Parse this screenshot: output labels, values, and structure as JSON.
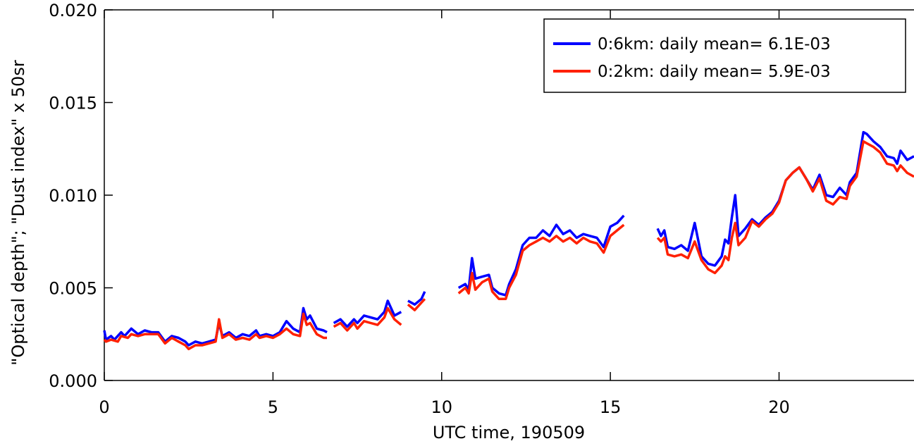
{
  "chart_data": {
    "type": "line",
    "title": "",
    "xlabel": "UTC time, 190509",
    "ylabel": "\"Optical depth\"; \"Dust index\" x 50sr",
    "xlim": [
      0,
      24
    ],
    "ylim": [
      0,
      0.02
    ],
    "x_ticks": [
      {
        "value": 0,
        "label": "0"
      },
      {
        "value": 5,
        "label": "5"
      },
      {
        "value": 10,
        "label": "10"
      },
      {
        "value": 15,
        "label": "15"
      },
      {
        "value": 20,
        "label": "20"
      }
    ],
    "y_ticks": [
      {
        "value": 0,
        "label": "0.000"
      },
      {
        "value": 0.005,
        "label": "0.005"
      },
      {
        "value": 0.01,
        "label": "0.010"
      },
      {
        "value": 0.015,
        "label": "0.015"
      },
      {
        "value": 0.02,
        "label": "0.020"
      }
    ],
    "grid": false,
    "legend_position": "top-right",
    "series": [
      {
        "name": "0:6km: daily mean= 6.1E-03",
        "color": "#0000ff",
        "segments": [
          [
            [
              0,
              0.0027
            ],
            [
              0.05,
              0.0022
            ],
            [
              0.2,
              0.0024
            ],
            [
              0.3,
              0.0022
            ],
            [
              0.5,
              0.0026
            ],
            [
              0.6,
              0.0024
            ],
            [
              0.8,
              0.0028
            ],
            [
              1.0,
              0.0025
            ],
            [
              1.2,
              0.0027
            ],
            [
              1.4,
              0.0026
            ],
            [
              1.6,
              0.0026
            ],
            [
              1.8,
              0.0021
            ],
            [
              2.0,
              0.0024
            ],
            [
              2.2,
              0.0023
            ],
            [
              2.4,
              0.0021
            ],
            [
              2.5,
              0.0019
            ],
            [
              2.7,
              0.0021
            ],
            [
              2.9,
              0.002
            ],
            [
              3.1,
              0.0021
            ],
            [
              3.3,
              0.0022
            ],
            [
              3.4,
              0.0031
            ],
            [
              3.5,
              0.0024
            ],
            [
              3.7,
              0.0026
            ],
            [
              3.9,
              0.0023
            ],
            [
              4.1,
              0.0025
            ],
            [
              4.3,
              0.0024
            ],
            [
              4.5,
              0.0027
            ],
            [
              4.6,
              0.0024
            ],
            [
              4.8,
              0.0025
            ],
            [
              5.0,
              0.0024
            ],
            [
              5.2,
              0.0026
            ],
            [
              5.4,
              0.0032
            ],
            [
              5.6,
              0.0028
            ],
            [
              5.8,
              0.0026
            ],
            [
              5.9,
              0.0039
            ],
            [
              6.0,
              0.0033
            ],
            [
              6.1,
              0.0035
            ],
            [
              6.3,
              0.0028
            ],
            [
              6.5,
              0.0027
            ],
            [
              6.6,
              0.0026
            ]
          ],
          [
            [
              6.8,
              0.0031
            ],
            [
              7.0,
              0.0033
            ],
            [
              7.2,
              0.0029
            ],
            [
              7.4,
              0.0033
            ],
            [
              7.5,
              0.0031
            ],
            [
              7.7,
              0.0035
            ],
            [
              7.9,
              0.0034
            ],
            [
              8.1,
              0.0033
            ],
            [
              8.3,
              0.0037
            ],
            [
              8.4,
              0.0043
            ],
            [
              8.6,
              0.0035
            ],
            [
              8.8,
              0.0037
            ]
          ],
          [
            [
              9.0,
              0.0043
            ],
            [
              9.2,
              0.0041
            ],
            [
              9.4,
              0.0044
            ],
            [
              9.5,
              0.0048
            ]
          ],
          [
            [
              10.5,
              0.005
            ],
            [
              10.7,
              0.0052
            ],
            [
              10.8,
              0.0049
            ],
            [
              10.9,
              0.0066
            ],
            [
              11.0,
              0.0055
            ],
            [
              11.2,
              0.0056
            ],
            [
              11.4,
              0.0057
            ],
            [
              11.5,
              0.005
            ],
            [
              11.7,
              0.0047
            ],
            [
              11.9,
              0.0046
            ],
            [
              12.0,
              0.0052
            ],
            [
              12.2,
              0.006
            ],
            [
              12.4,
              0.0073
            ],
            [
              12.6,
              0.0077
            ],
            [
              12.8,
              0.0077
            ],
            [
              13.0,
              0.0081
            ],
            [
              13.2,
              0.0078
            ],
            [
              13.4,
              0.0084
            ],
            [
              13.6,
              0.0079
            ],
            [
              13.8,
              0.0081
            ],
            [
              14.0,
              0.0077
            ],
            [
              14.2,
              0.0079
            ],
            [
              14.4,
              0.0078
            ],
            [
              14.6,
              0.0077
            ],
            [
              14.8,
              0.0072
            ],
            [
              15.0,
              0.0083
            ],
            [
              15.2,
              0.0085
            ],
            [
              15.4,
              0.0089
            ]
          ],
          [
            [
              16.4,
              0.0082
            ],
            [
              16.5,
              0.0078
            ],
            [
              16.6,
              0.0081
            ],
            [
              16.7,
              0.0072
            ],
            [
              16.9,
              0.0071
            ],
            [
              17.1,
              0.0073
            ],
            [
              17.3,
              0.007
            ],
            [
              17.5,
              0.0085
            ],
            [
              17.7,
              0.0067
            ],
            [
              17.9,
              0.0063
            ],
            [
              18.1,
              0.0062
            ],
            [
              18.3,
              0.0067
            ],
            [
              18.4,
              0.0076
            ],
            [
              18.5,
              0.0074
            ],
            [
              18.6,
              0.0088
            ],
            [
              18.7,
              0.01
            ],
            [
              18.8,
              0.0078
            ],
            [
              19.0,
              0.0082
            ],
            [
              19.2,
              0.0087
            ],
            [
              19.4,
              0.0084
            ],
            [
              19.6,
              0.0088
            ],
            [
              19.8,
              0.0091
            ],
            [
              20.0,
              0.0097
            ],
            [
              20.2,
              0.0108
            ],
            [
              20.4,
              0.0112
            ],
            [
              20.6,
              0.0115
            ],
            [
              20.8,
              0.0109
            ],
            [
              21.0,
              0.0103
            ],
            [
              21.2,
              0.0111
            ],
            [
              21.4,
              0.01
            ],
            [
              21.6,
              0.0099
            ],
            [
              21.8,
              0.0104
            ],
            [
              22.0,
              0.01
            ],
            [
              22.1,
              0.0107
            ],
            [
              22.3,
              0.0112
            ],
            [
              22.5,
              0.0134
            ],
            [
              22.6,
              0.0133
            ],
            [
              22.8,
              0.0129
            ],
            [
              23.0,
              0.0126
            ],
            [
              23.2,
              0.0121
            ],
            [
              23.4,
              0.012
            ],
            [
              23.5,
              0.0117
            ],
            [
              23.6,
              0.0124
            ],
            [
              23.8,
              0.0119
            ],
            [
              24.0,
              0.0121
            ]
          ]
        ]
      },
      {
        "name": "0:2km: daily mean= 5.9E-03",
        "color": "#ff2000",
        "segments": [
          [
            [
              0,
              0.0022
            ],
            [
              0.05,
              0.0021
            ],
            [
              0.2,
              0.0022
            ],
            [
              0.4,
              0.0021
            ],
            [
              0.5,
              0.0024
            ],
            [
              0.7,
              0.0023
            ],
            [
              0.8,
              0.0025
            ],
            [
              1.0,
              0.0024
            ],
            [
              1.2,
              0.0025
            ],
            [
              1.4,
              0.0025
            ],
            [
              1.6,
              0.0025
            ],
            [
              1.8,
              0.002
            ],
            [
              2.0,
              0.0023
            ],
            [
              2.2,
              0.0021
            ],
            [
              2.4,
              0.0019
            ],
            [
              2.5,
              0.0017
            ],
            [
              2.7,
              0.0019
            ],
            [
              2.9,
              0.0019
            ],
            [
              3.1,
              0.002
            ],
            [
              3.3,
              0.0021
            ],
            [
              3.4,
              0.0033
            ],
            [
              3.5,
              0.0023
            ],
            [
              3.7,
              0.0025
            ],
            [
              3.9,
              0.0022
            ],
            [
              4.1,
              0.0023
            ],
            [
              4.3,
              0.0022
            ],
            [
              4.5,
              0.0025
            ],
            [
              4.6,
              0.0023
            ],
            [
              4.8,
              0.0024
            ],
            [
              5.0,
              0.0023
            ],
            [
              5.2,
              0.0025
            ],
            [
              5.4,
              0.0028
            ],
            [
              5.6,
              0.0025
            ],
            [
              5.8,
              0.0024
            ],
            [
              5.9,
              0.0036
            ],
            [
              6.0,
              0.003
            ],
            [
              6.1,
              0.0031
            ],
            [
              6.3,
              0.0025
            ],
            [
              6.5,
              0.0023
            ],
            [
              6.6,
              0.0023
            ]
          ],
          [
            [
              6.8,
              0.0029
            ],
            [
              7.0,
              0.0031
            ],
            [
              7.2,
              0.0027
            ],
            [
              7.4,
              0.0031
            ],
            [
              7.5,
              0.0028
            ],
            [
              7.7,
              0.0032
            ],
            [
              7.9,
              0.0031
            ],
            [
              8.1,
              0.003
            ],
            [
              8.3,
              0.0034
            ],
            [
              8.4,
              0.0039
            ],
            [
              8.6,
              0.0033
            ],
            [
              8.8,
              0.003
            ]
          ],
          [
            [
              9.0,
              0.0041
            ],
            [
              9.2,
              0.0038
            ],
            [
              9.4,
              0.0042
            ],
            [
              9.5,
              0.0044
            ]
          ],
          [
            [
              10.5,
              0.0047
            ],
            [
              10.7,
              0.005
            ],
            [
              10.8,
              0.0047
            ],
            [
              10.9,
              0.0058
            ],
            [
              11.0,
              0.0049
            ],
            [
              11.2,
              0.0053
            ],
            [
              11.4,
              0.0055
            ],
            [
              11.5,
              0.0048
            ],
            [
              11.7,
              0.0044
            ],
            [
              11.9,
              0.0044
            ],
            [
              12.0,
              0.005
            ],
            [
              12.2,
              0.0057
            ],
            [
              12.4,
              0.007
            ],
            [
              12.6,
              0.0073
            ],
            [
              12.8,
              0.0075
            ],
            [
              13.0,
              0.0077
            ],
            [
              13.2,
              0.0075
            ],
            [
              13.4,
              0.0078
            ],
            [
              13.6,
              0.0075
            ],
            [
              13.8,
              0.0077
            ],
            [
              14.0,
              0.0074
            ],
            [
              14.2,
              0.0077
            ],
            [
              14.4,
              0.0075
            ],
            [
              14.6,
              0.0074
            ],
            [
              14.8,
              0.0069
            ],
            [
              15.0,
              0.0078
            ],
            [
              15.2,
              0.0081
            ],
            [
              15.4,
              0.0084
            ]
          ],
          [
            [
              16.4,
              0.0077
            ],
            [
              16.5,
              0.0075
            ],
            [
              16.6,
              0.0077
            ],
            [
              16.7,
              0.0068
            ],
            [
              16.9,
              0.0067
            ],
            [
              17.1,
              0.0068
            ],
            [
              17.3,
              0.0066
            ],
            [
              17.5,
              0.0075
            ],
            [
              17.7,
              0.0065
            ],
            [
              17.9,
              0.006
            ],
            [
              18.1,
              0.0058
            ],
            [
              18.3,
              0.0062
            ],
            [
              18.4,
              0.0067
            ],
            [
              18.5,
              0.0065
            ],
            [
              18.6,
              0.0077
            ],
            [
              18.7,
              0.0085
            ],
            [
              18.8,
              0.0073
            ],
            [
              19.0,
              0.0077
            ],
            [
              19.2,
              0.0086
            ],
            [
              19.4,
              0.0083
            ],
            [
              19.6,
              0.0087
            ],
            [
              19.8,
              0.009
            ],
            [
              20.0,
              0.0096
            ],
            [
              20.2,
              0.0108
            ],
            [
              20.4,
              0.0112
            ],
            [
              20.6,
              0.0115
            ],
            [
              20.8,
              0.0109
            ],
            [
              21.0,
              0.0102
            ],
            [
              21.2,
              0.0109
            ],
            [
              21.4,
              0.0097
            ],
            [
              21.6,
              0.0095
            ],
            [
              21.8,
              0.0099
            ],
            [
              22.0,
              0.0098
            ],
            [
              22.1,
              0.0105
            ],
            [
              22.3,
              0.011
            ],
            [
              22.5,
              0.0129
            ],
            [
              22.6,
              0.0128
            ],
            [
              22.8,
              0.0126
            ],
            [
              23.0,
              0.0123
            ],
            [
              23.2,
              0.0117
            ],
            [
              23.4,
              0.0116
            ],
            [
              23.5,
              0.0113
            ],
            [
              23.6,
              0.0116
            ],
            [
              23.8,
              0.0112
            ],
            [
              24.0,
              0.011
            ]
          ]
        ]
      }
    ]
  }
}
